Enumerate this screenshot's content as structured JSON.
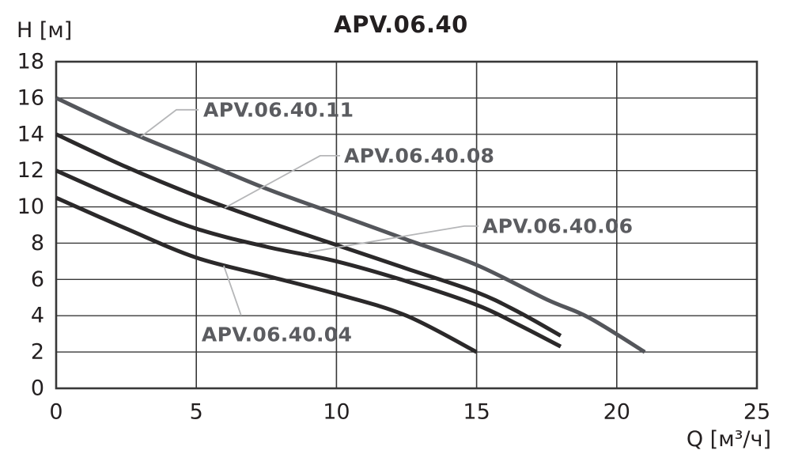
{
  "chart": {
    "title": "APV.06.40",
    "y_axis_label": "H [м]",
    "x_axis_label": "Q [м³/ч]"
  },
  "chart_data": {
    "type": "line",
    "title": "APV.06.40",
    "xlabel": "Q [м³/ч]",
    "ylabel": "H [м]",
    "xlim": [
      0,
      25
    ],
    "ylim": [
      0,
      18
    ],
    "x_ticks": [
      0,
      5,
      10,
      15,
      20,
      25
    ],
    "y_ticks": [
      0,
      2,
      4,
      6,
      8,
      10,
      12,
      14,
      16,
      18
    ],
    "grid": true,
    "legend_position": "inline-callouts",
    "colors": {
      "curve_dark": "#2b292a",
      "curve_gray": "#54565b",
      "grid": "#383838",
      "leader": "#b5b6b8",
      "curve_label_text": "#5b5c60",
      "axis_text": "#231f20"
    },
    "series": [
      {
        "name": "APV.06.40.11",
        "color": "#54565b",
        "points": [
          [
            0,
            16
          ],
          [
            2.5,
            14.2
          ],
          [
            5,
            12.6
          ],
          [
            7.5,
            11.0
          ],
          [
            10,
            9.6
          ],
          [
            12.5,
            8.2
          ],
          [
            15,
            6.8
          ],
          [
            17.5,
            4.9
          ],
          [
            19,
            3.9
          ],
          [
            21,
            2
          ]
        ]
      },
      {
        "name": "APV.06.40.08",
        "color": "#2b292a",
        "points": [
          [
            0,
            14
          ],
          [
            2.5,
            12.2
          ],
          [
            5,
            10.6
          ],
          [
            7.5,
            9.2
          ],
          [
            10,
            7.9
          ],
          [
            12.5,
            6.6
          ],
          [
            15,
            5.3
          ],
          [
            16.5,
            4.2
          ],
          [
            18,
            2.9
          ]
        ]
      },
      {
        "name": "APV.06.40.06",
        "color": "#2b292a",
        "points": [
          [
            0,
            12
          ],
          [
            2.5,
            10.3
          ],
          [
            5,
            8.8
          ],
          [
            7.5,
            7.8
          ],
          [
            10,
            7.0
          ],
          [
            12.5,
            5.9
          ],
          [
            15,
            4.6
          ],
          [
            16.5,
            3.5
          ],
          [
            18,
            2.3
          ]
        ]
      },
      {
        "name": "APV.06.40.04",
        "color": "#2b292a",
        "points": [
          [
            0,
            10.5
          ],
          [
            2.5,
            8.8
          ],
          [
            5,
            7.2
          ],
          [
            7.5,
            6.2
          ],
          [
            10,
            5.2
          ],
          [
            12.5,
            4.0
          ],
          [
            15,
            2
          ]
        ]
      }
    ],
    "annotations": [
      {
        "series": "APV.06.40.11",
        "text": "APV.06.40.11",
        "label_pos": [
          5.25,
          15.35
        ],
        "leader": [
          [
            5.08,
            15.35
          ],
          [
            4.29,
            15.35
          ],
          [
            3.02,
            13.86
          ]
        ]
      },
      {
        "series": "APV.06.40.08",
        "text": "APV.06.40.08",
        "label_pos": [
          10.27,
          12.82
        ],
        "leader": [
          [
            10.13,
            12.82
          ],
          [
            9.42,
            12.82
          ],
          [
            6.01,
            9.94
          ]
        ]
      },
      {
        "series": "APV.06.40.06",
        "text": "APV.06.40.06",
        "label_pos": [
          15.21,
          8.94
        ],
        "leader": [
          [
            15.07,
            8.94
          ],
          [
            14.56,
            8.94
          ],
          [
            9.0,
            7.5
          ]
        ]
      },
      {
        "series": "APV.06.40.04",
        "text": "APV.06.40.04",
        "label_pos": [
          5.19,
          2.96
        ],
        "leader": [
          [
            6.6,
            4.01
          ],
          [
            5.98,
            6.76
          ]
        ]
      }
    ]
  }
}
